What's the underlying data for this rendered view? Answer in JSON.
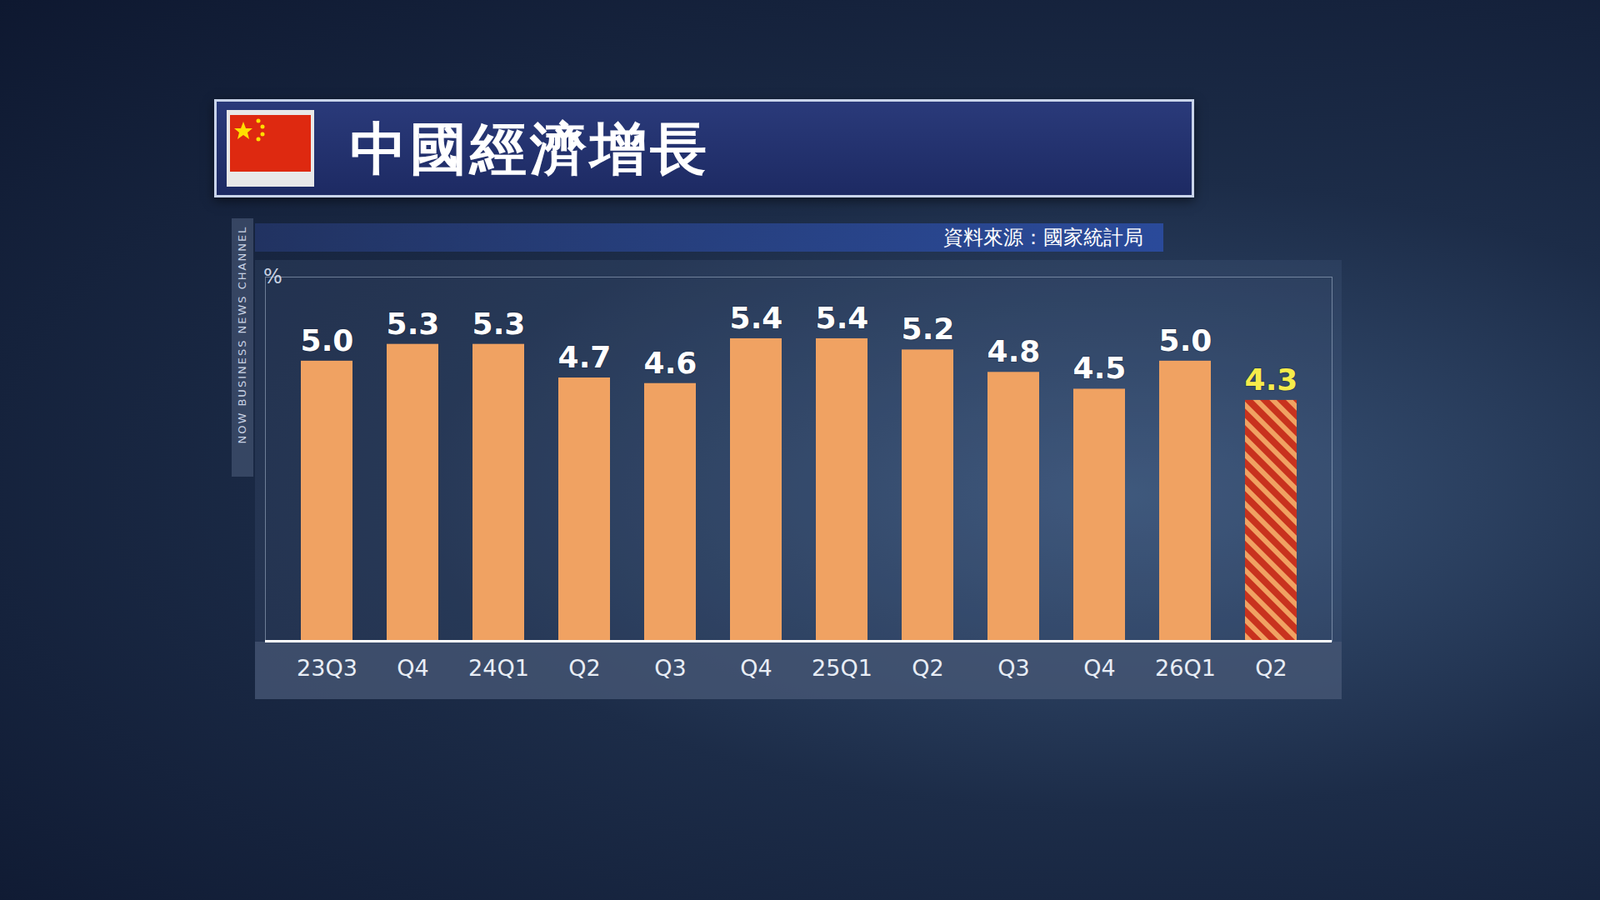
{
  "chart_data": {
    "type": "bar",
    "title": "中國經濟增長",
    "subtitle": "資料來源：國家統計局",
    "y_label": "%",
    "watermark": "NOW BUSINESS NEWS CHANNEL",
    "categories": [
      "23Q3",
      "Q4",
      "24Q1",
      "Q2",
      "Q3",
      "Q4",
      "25Q1",
      "Q2",
      "Q3",
      "Q4",
      "26Q1",
      "Q2"
    ],
    "values": [
      5.0,
      5.3,
      5.3,
      4.7,
      4.6,
      5.4,
      5.4,
      5.2,
      4.8,
      4.5,
      5.0,
      4.3
    ],
    "value_labels": [
      "5.0",
      "5.3",
      "5.3",
      "4.7",
      "4.6",
      "5.4",
      "5.4",
      "5.2",
      "4.8",
      "4.5",
      "5.0",
      "4.3"
    ],
    "colors": [
      "#f0a262",
      "#f0a262",
      "#f0a262",
      "#f0a262",
      "#f0a262",
      "#f0a262",
      "#f0a262",
      "#f0a262",
      "#f0a262",
      "#f0a262",
      "#f0a262",
      "#c8321e"
    ],
    "ylim": [
      0,
      6.5
    ],
    "data_labels": true,
    "tick_labels": "x",
    "grid": false
  }
}
